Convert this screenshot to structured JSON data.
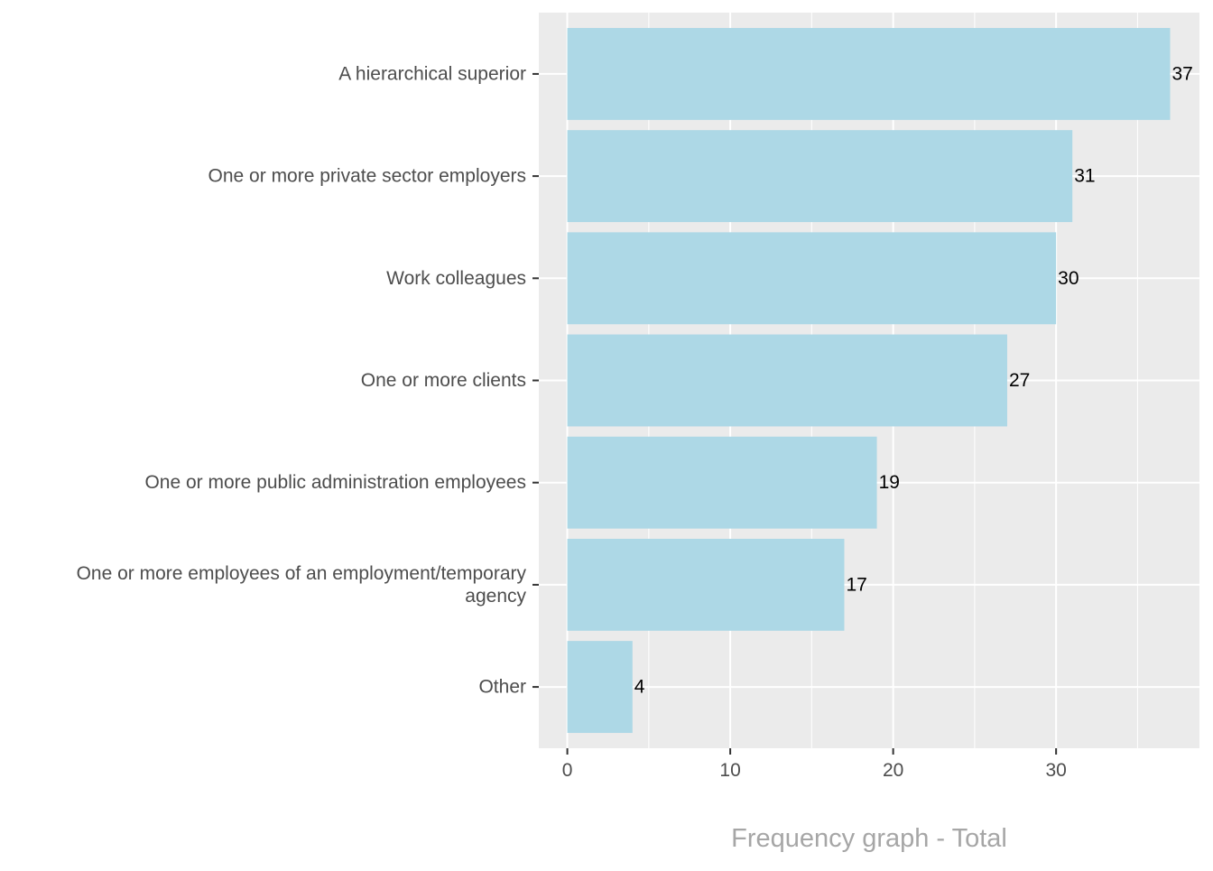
{
  "chart_data": {
    "type": "bar",
    "orientation": "horizontal",
    "categories": [
      "A hierarchical superior",
      "One or more private sector employers",
      "Work colleagues",
      "One or more clients",
      "One or more public administration employees",
      "One or more employees of an employment/temporary\nagency",
      "Other"
    ],
    "values": [
      37,
      31,
      30,
      27,
      19,
      17,
      4
    ],
    "data_labels": [
      "37",
      "31",
      "30",
      "27",
      "19",
      "17",
      "4"
    ],
    "title": "",
    "xlabel": "Frequency graph - Total",
    "ylabel": "",
    "xlim": [
      -1.75,
      38.8
    ],
    "x_ticks": [
      0,
      10,
      20,
      30
    ],
    "x_tick_labels": [
      "0",
      "10",
      "20",
      "30"
    ],
    "x_minor_ticks": [
      5,
      15,
      25,
      35
    ],
    "grid": true,
    "legend": "none",
    "colors": {
      "bar": "#add8e6",
      "panel_background": "#ebebeb",
      "grid_line": "#ffffff",
      "axis_text": "#4d4d4d",
      "data_label": "#000000",
      "xlabel": "#a6a6a6"
    }
  }
}
